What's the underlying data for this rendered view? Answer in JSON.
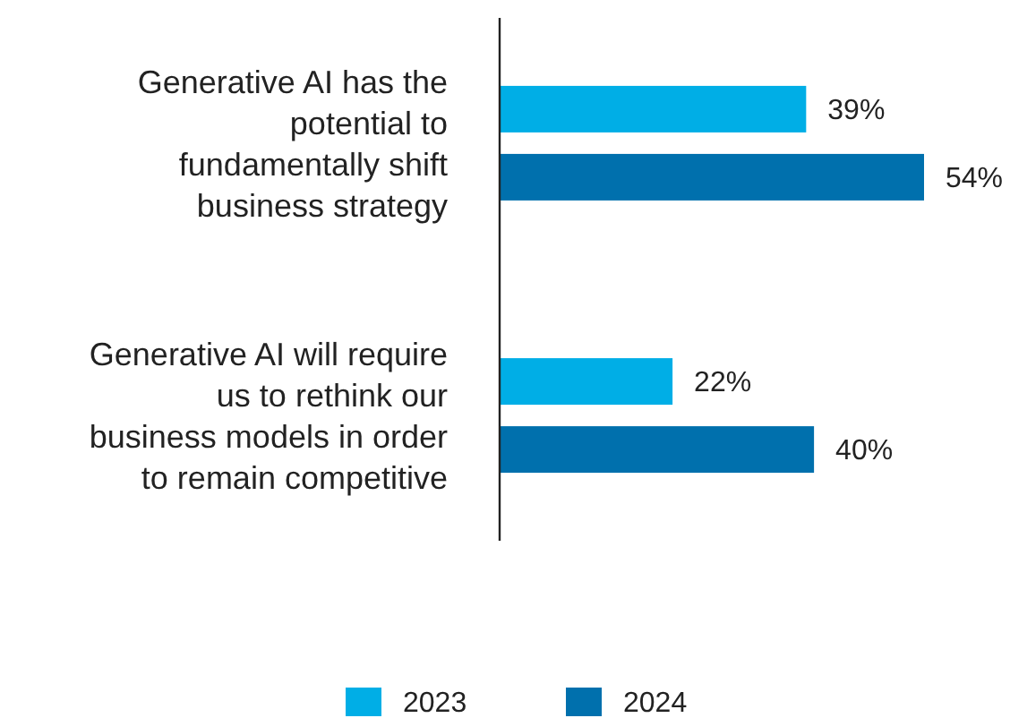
{
  "chart_data": {
    "type": "bar",
    "orientation": "horizontal",
    "categories": [
      "Generative AI has the potential to fundamentally shift business strategy",
      "Generative AI will require us to rethink our business models in order to remain competitive"
    ],
    "series": [
      {
        "name": "2023",
        "color": "#00aee6",
        "values": [
          39,
          22
        ],
        "value_labels": [
          "39%",
          "22%"
        ]
      },
      {
        "name": "2024",
        "color": "#0070ad",
        "values": [
          54,
          40
        ],
        "value_labels": [
          "54%",
          "40%"
        ]
      }
    ],
    "legend": "bottom"
  }
}
